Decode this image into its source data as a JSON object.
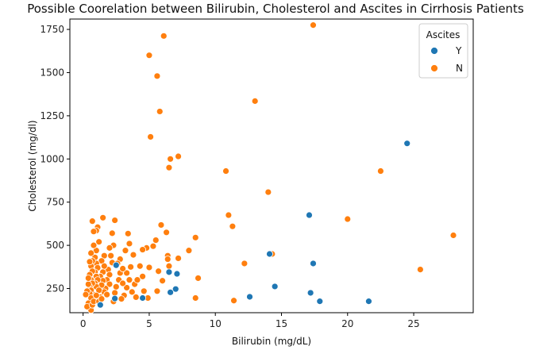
{
  "chart_data": {
    "type": "scatter",
    "title": "Possible Coorelation between Bilirubin, Cholesterol and Ascites in Cirrhosis Patients",
    "xlabel": "Bilirubin (mg/dL)",
    "ylabel": "Cholesterol (mg/dl)",
    "xlim": [
      -1,
      29.5
    ],
    "ylim": [
      110,
      1810
    ],
    "xticks": [
      0,
      5,
      10,
      15,
      20,
      25
    ],
    "yticks": [
      250,
      500,
      750,
      1000,
      1250,
      1500,
      1750
    ],
    "grid": false,
    "legend": {
      "title": "Ascites",
      "placement": "top-right"
    },
    "series": [
      {
        "name": "Y",
        "color": "#1f77b4",
        "points": [
          [
            24.5,
            1090
          ],
          [
            17.1,
            675
          ],
          [
            14.1,
            450
          ],
          [
            17.4,
            395
          ],
          [
            14.5,
            262
          ],
          [
            17.2,
            225
          ],
          [
            12.6,
            202
          ],
          [
            17.9,
            176
          ],
          [
            21.6,
            176
          ],
          [
            6.5,
            345
          ],
          [
            7.1,
            335
          ],
          [
            7.0,
            247
          ],
          [
            6.6,
            228
          ],
          [
            4.5,
            195
          ],
          [
            2.4,
            192
          ],
          [
            1.3,
            155
          ],
          [
            2.5,
            385
          ]
        ]
      },
      {
        "name": "N",
        "color": "#ff7f0e",
        "points": [
          [
            17.4,
            1775
          ],
          [
            6.1,
            1712
          ],
          [
            5.0,
            1600
          ],
          [
            5.6,
            1480
          ],
          [
            13.0,
            1335
          ],
          [
            5.8,
            1275
          ],
          [
            5.1,
            1128
          ],
          [
            7.2,
            1015
          ],
          [
            6.6,
            1000
          ],
          [
            6.5,
            950
          ],
          [
            10.8,
            930
          ],
          [
            22.5,
            930
          ],
          [
            14.0,
            808
          ],
          [
            11.0,
            675
          ],
          [
            20.0,
            652
          ],
          [
            11.3,
            610
          ],
          [
            28.0,
            558
          ],
          [
            8.5,
            545
          ],
          [
            25.5,
            360
          ],
          [
            14.3,
            450
          ],
          [
            12.2,
            395
          ],
          [
            11.4,
            180
          ],
          [
            8.7,
            310
          ],
          [
            8.5,
            195
          ],
          [
            8.0,
            470
          ],
          [
            7.2,
            425
          ],
          [
            6.4,
            440
          ],
          [
            6.3,
            575
          ],
          [
            5.9,
            618
          ],
          [
            5.5,
            530
          ],
          [
            5.3,
            495
          ],
          [
            4.8,
            485
          ],
          [
            4.5,
            475
          ],
          [
            4.3,
            380
          ],
          [
            4.5,
            320
          ],
          [
            4.6,
            235
          ],
          [
            5.0,
            372
          ],
          [
            5.7,
            350
          ],
          [
            6.0,
            295
          ],
          [
            6.5,
            380
          ],
          [
            6.4,
            420
          ],
          [
            5.6,
            235
          ],
          [
            4.9,
            195
          ],
          [
            3.4,
            568
          ],
          [
            3.5,
            510
          ],
          [
            3.2,
            470
          ],
          [
            3.8,
            445
          ],
          [
            3.6,
            375
          ],
          [
            3.3,
            340
          ],
          [
            3.5,
            300
          ],
          [
            3.3,
            255
          ],
          [
            3.1,
            210
          ],
          [
            3.7,
            230
          ],
          [
            3.9,
            275
          ],
          [
            2.8,
            420
          ],
          [
            2.6,
            395
          ],
          [
            2.8,
            340
          ],
          [
            2.7,
            300
          ],
          [
            2.5,
            260
          ],
          [
            2.3,
            175
          ],
          [
            2.4,
            645
          ],
          [
            2.2,
            570
          ],
          [
            2.3,
            500
          ],
          [
            2.0,
            485
          ],
          [
            2.1,
            440
          ],
          [
            2.2,
            400
          ],
          [
            1.9,
            360
          ],
          [
            2.0,
            330
          ],
          [
            1.8,
            300
          ],
          [
            2.0,
            275
          ],
          [
            1.7,
            250
          ],
          [
            1.5,
            660
          ],
          [
            1.6,
            440
          ],
          [
            1.4,
            410
          ],
          [
            1.6,
            380
          ],
          [
            1.5,
            345
          ],
          [
            1.3,
            320
          ],
          [
            1.5,
            295
          ],
          [
            1.4,
            270
          ],
          [
            1.6,
            230
          ],
          [
            1.3,
            200
          ],
          [
            1.1,
            605
          ],
          [
            1.2,
            520
          ],
          [
            1.0,
            585
          ],
          [
            1.0,
            470
          ],
          [
            0.9,
            430
          ],
          [
            1.0,
            395
          ],
          [
            1.1,
            370
          ],
          [
            0.9,
            345
          ],
          [
            1.0,
            320
          ],
          [
            1.1,
            300
          ],
          [
            0.9,
            280
          ],
          [
            1.0,
            260
          ],
          [
            1.2,
            240
          ],
          [
            0.8,
            215
          ],
          [
            0.7,
            640
          ],
          [
            0.8,
            580
          ],
          [
            0.8,
            500
          ],
          [
            0.6,
            455
          ],
          [
            0.7,
            410
          ],
          [
            0.6,
            380
          ],
          [
            0.7,
            350
          ],
          [
            0.5,
            330
          ],
          [
            0.6,
            300
          ],
          [
            0.7,
            280
          ],
          [
            0.5,
            260
          ],
          [
            0.6,
            240
          ],
          [
            0.5,
            220
          ],
          [
            0.6,
            195
          ],
          [
            0.5,
            405
          ],
          [
            0.4,
            165
          ],
          [
            0.5,
            140
          ],
          [
            0.6,
            125
          ],
          [
            0.3,
            145
          ],
          [
            0.4,
            275
          ],
          [
            0.3,
            235
          ],
          [
            0.2,
            215
          ],
          [
            0.4,
            310
          ],
          [
            0.7,
            155
          ],
          [
            0.8,
            175
          ],
          [
            1.0,
            210
          ],
          [
            1.2,
            175
          ],
          [
            1.4,
            190
          ],
          [
            1.8,
            215
          ],
          [
            2.4,
            225
          ],
          [
            2.9,
            190
          ],
          [
            3.0,
            365
          ],
          [
            3.0,
            280
          ],
          [
            4.0,
            200
          ],
          [
            4.1,
            300
          ]
        ]
      }
    ]
  }
}
